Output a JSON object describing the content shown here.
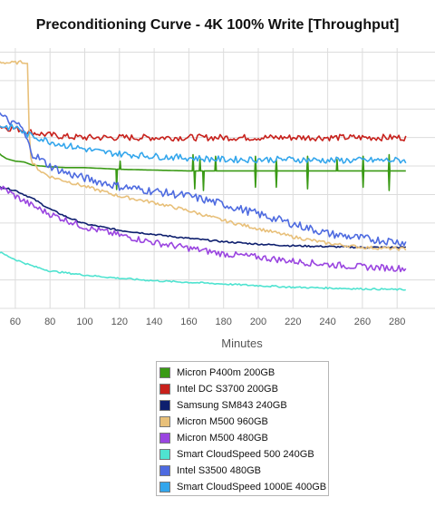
{
  "title": "Preconditioning Curve - 4K 100% Write [Throughput]",
  "chart_data": {
    "type": "line",
    "title": "Preconditioning Curve - 4K 100% Write [Throughput]",
    "xlabel": "Minutes",
    "ylabel": "",
    "xlim": [
      50,
      285
    ],
    "ylim": [
      0,
      320
    ],
    "x_ticks": [
      60,
      80,
      100,
      120,
      140,
      160,
      180,
      200,
      220,
      240,
      260,
      280
    ],
    "y_gridlines": [
      0,
      35,
      70,
      105,
      140,
      175,
      210,
      245,
      280,
      315
    ],
    "grid": true,
    "legend_position": "bottom-center",
    "series": [
      {
        "name": "Micron P400m 200GB",
        "color": "#3a9a15",
        "points": [
          [
            50,
            192
          ],
          [
            52,
            188
          ],
          [
            55,
            184
          ],
          [
            60,
            181
          ],
          [
            65,
            180
          ],
          [
            70,
            176
          ],
          [
            80,
            174
          ],
          [
            90,
            173
          ],
          [
            100,
            173
          ],
          [
            110,
            172
          ],
          [
            120,
            171
          ],
          [
            140,
            170
          ],
          [
            160,
            169
          ],
          [
            180,
            169
          ],
          [
            200,
            169
          ],
          [
            220,
            169
          ],
          [
            240,
            169
          ],
          [
            260,
            169
          ],
          [
            285,
            169
          ]
        ],
        "spikes": [
          [
            118,
            -25
          ],
          [
            120,
            10
          ],
          [
            162,
            20
          ],
          [
            163,
            -22
          ],
          [
            166,
            14
          ],
          [
            168,
            -24
          ],
          [
            175,
            18
          ],
          [
            198,
            18
          ],
          [
            198,
            -20
          ],
          [
            210,
            14
          ],
          [
            210,
            -20
          ],
          [
            228,
            18
          ],
          [
            228,
            -22
          ],
          [
            245,
            14
          ],
          [
            260,
            18
          ],
          [
            260,
            -20
          ],
          [
            275,
            20
          ],
          [
            275,
            -24
          ]
        ]
      },
      {
        "name": "Intel DC S3700 200GB",
        "color": "#c8211c",
        "points": [
          [
            50,
            225
          ],
          [
            55,
            222
          ],
          [
            60,
            221
          ],
          [
            65,
            219
          ],
          [
            70,
            216
          ],
          [
            80,
            213
          ],
          [
            90,
            211
          ],
          [
            100,
            210
          ],
          [
            120,
            210
          ],
          [
            140,
            210
          ],
          [
            160,
            210
          ],
          [
            180,
            210
          ],
          [
            200,
            210
          ],
          [
            220,
            210
          ],
          [
            240,
            210
          ],
          [
            260,
            210
          ],
          [
            285,
            210
          ]
        ],
        "noise": 4
      },
      {
        "name": "Samsung SM843 240GB",
        "color": "#0e1f6e",
        "points": [
          [
            50,
            150
          ],
          [
            60,
            145
          ],
          [
            70,
            135
          ],
          [
            80,
            122
          ],
          [
            90,
            112
          ],
          [
            100,
            104
          ],
          [
            120,
            96
          ],
          [
            140,
            91
          ],
          [
            160,
            86
          ],
          [
            180,
            82
          ],
          [
            200,
            79
          ],
          [
            220,
            77
          ],
          [
            240,
            76
          ],
          [
            260,
            75
          ],
          [
            285,
            75
          ]
        ],
        "noise": 1
      },
      {
        "name": "Micron M500 960GB",
        "color": "#e8c07a",
        "points": [
          [
            50,
            303
          ],
          [
            55,
            302
          ],
          [
            60,
            302
          ],
          [
            66,
            303
          ],
          [
            67,
            300
          ],
          [
            68,
            220
          ],
          [
            69,
            185
          ],
          [
            70,
            178
          ],
          [
            75,
            168
          ],
          [
            80,
            162
          ],
          [
            90,
            156
          ],
          [
            100,
            150
          ],
          [
            110,
            144
          ],
          [
            120,
            138
          ],
          [
            140,
            130
          ],
          [
            160,
            120
          ],
          [
            180,
            108
          ],
          [
            200,
            98
          ],
          [
            220,
            88
          ],
          [
            240,
            80
          ],
          [
            260,
            75
          ],
          [
            285,
            73
          ]
        ],
        "noise": 2
      },
      {
        "name": "Micron M500 480GB",
        "color": "#9a45e0",
        "points": [
          [
            50,
            150
          ],
          [
            55,
            145
          ],
          [
            60,
            138
          ],
          [
            70,
            126
          ],
          [
            80,
            116
          ],
          [
            90,
            108
          ],
          [
            100,
            100
          ],
          [
            120,
            90
          ],
          [
            140,
            81
          ],
          [
            160,
            74
          ],
          [
            180,
            67
          ],
          [
            200,
            63
          ],
          [
            220,
            58
          ],
          [
            240,
            54
          ],
          [
            260,
            51
          ],
          [
            285,
            49
          ]
        ],
        "noise": 4
      },
      {
        "name": "Smart CloudSpeed 500 240GB",
        "color": "#4fe3d0",
        "points": [
          [
            50,
            70
          ],
          [
            60,
            60
          ],
          [
            70,
            52
          ],
          [
            80,
            46
          ],
          [
            100,
            41
          ],
          [
            120,
            37
          ],
          [
            140,
            34
          ],
          [
            160,
            32
          ],
          [
            180,
            30
          ],
          [
            200,
            28
          ],
          [
            220,
            26
          ],
          [
            240,
            25
          ],
          [
            260,
            24
          ],
          [
            285,
            23
          ]
        ],
        "noise": 1
      },
      {
        "name": "Intel S3500 480GB",
        "color": "#4e6be0",
        "points": [
          [
            50,
            240
          ],
          [
            55,
            232
          ],
          [
            60,
            225
          ],
          [
            62,
            228
          ],
          [
            65,
            215
          ],
          [
            70,
            190
          ],
          [
            80,
            175
          ],
          [
            90,
            166
          ],
          [
            100,
            160
          ],
          [
            110,
            155
          ],
          [
            120,
            150
          ],
          [
            140,
            144
          ],
          [
            160,
            138
          ],
          [
            180,
            128
          ],
          [
            200,
            116
          ],
          [
            220,
            104
          ],
          [
            240,
            92
          ],
          [
            260,
            86
          ],
          [
            285,
            81
          ]
        ],
        "noise": 5
      },
      {
        "name": "Smart CloudSpeed 1000E 400GB",
        "color": "#33a6ec",
        "points": [
          [
            50,
            225
          ],
          [
            58,
            222
          ],
          [
            62,
            222
          ],
          [
            65,
            215
          ],
          [
            70,
            212
          ],
          [
            80,
            205
          ],
          [
            90,
            200
          ],
          [
            100,
            196
          ],
          [
            110,
            192
          ],
          [
            120,
            190
          ],
          [
            140,
            187
          ],
          [
            160,
            185
          ],
          [
            180,
            183
          ],
          [
            200,
            183
          ],
          [
            220,
            183
          ],
          [
            240,
            182
          ],
          [
            260,
            182
          ],
          [
            285,
            182
          ]
        ],
        "noise": 4
      }
    ]
  }
}
